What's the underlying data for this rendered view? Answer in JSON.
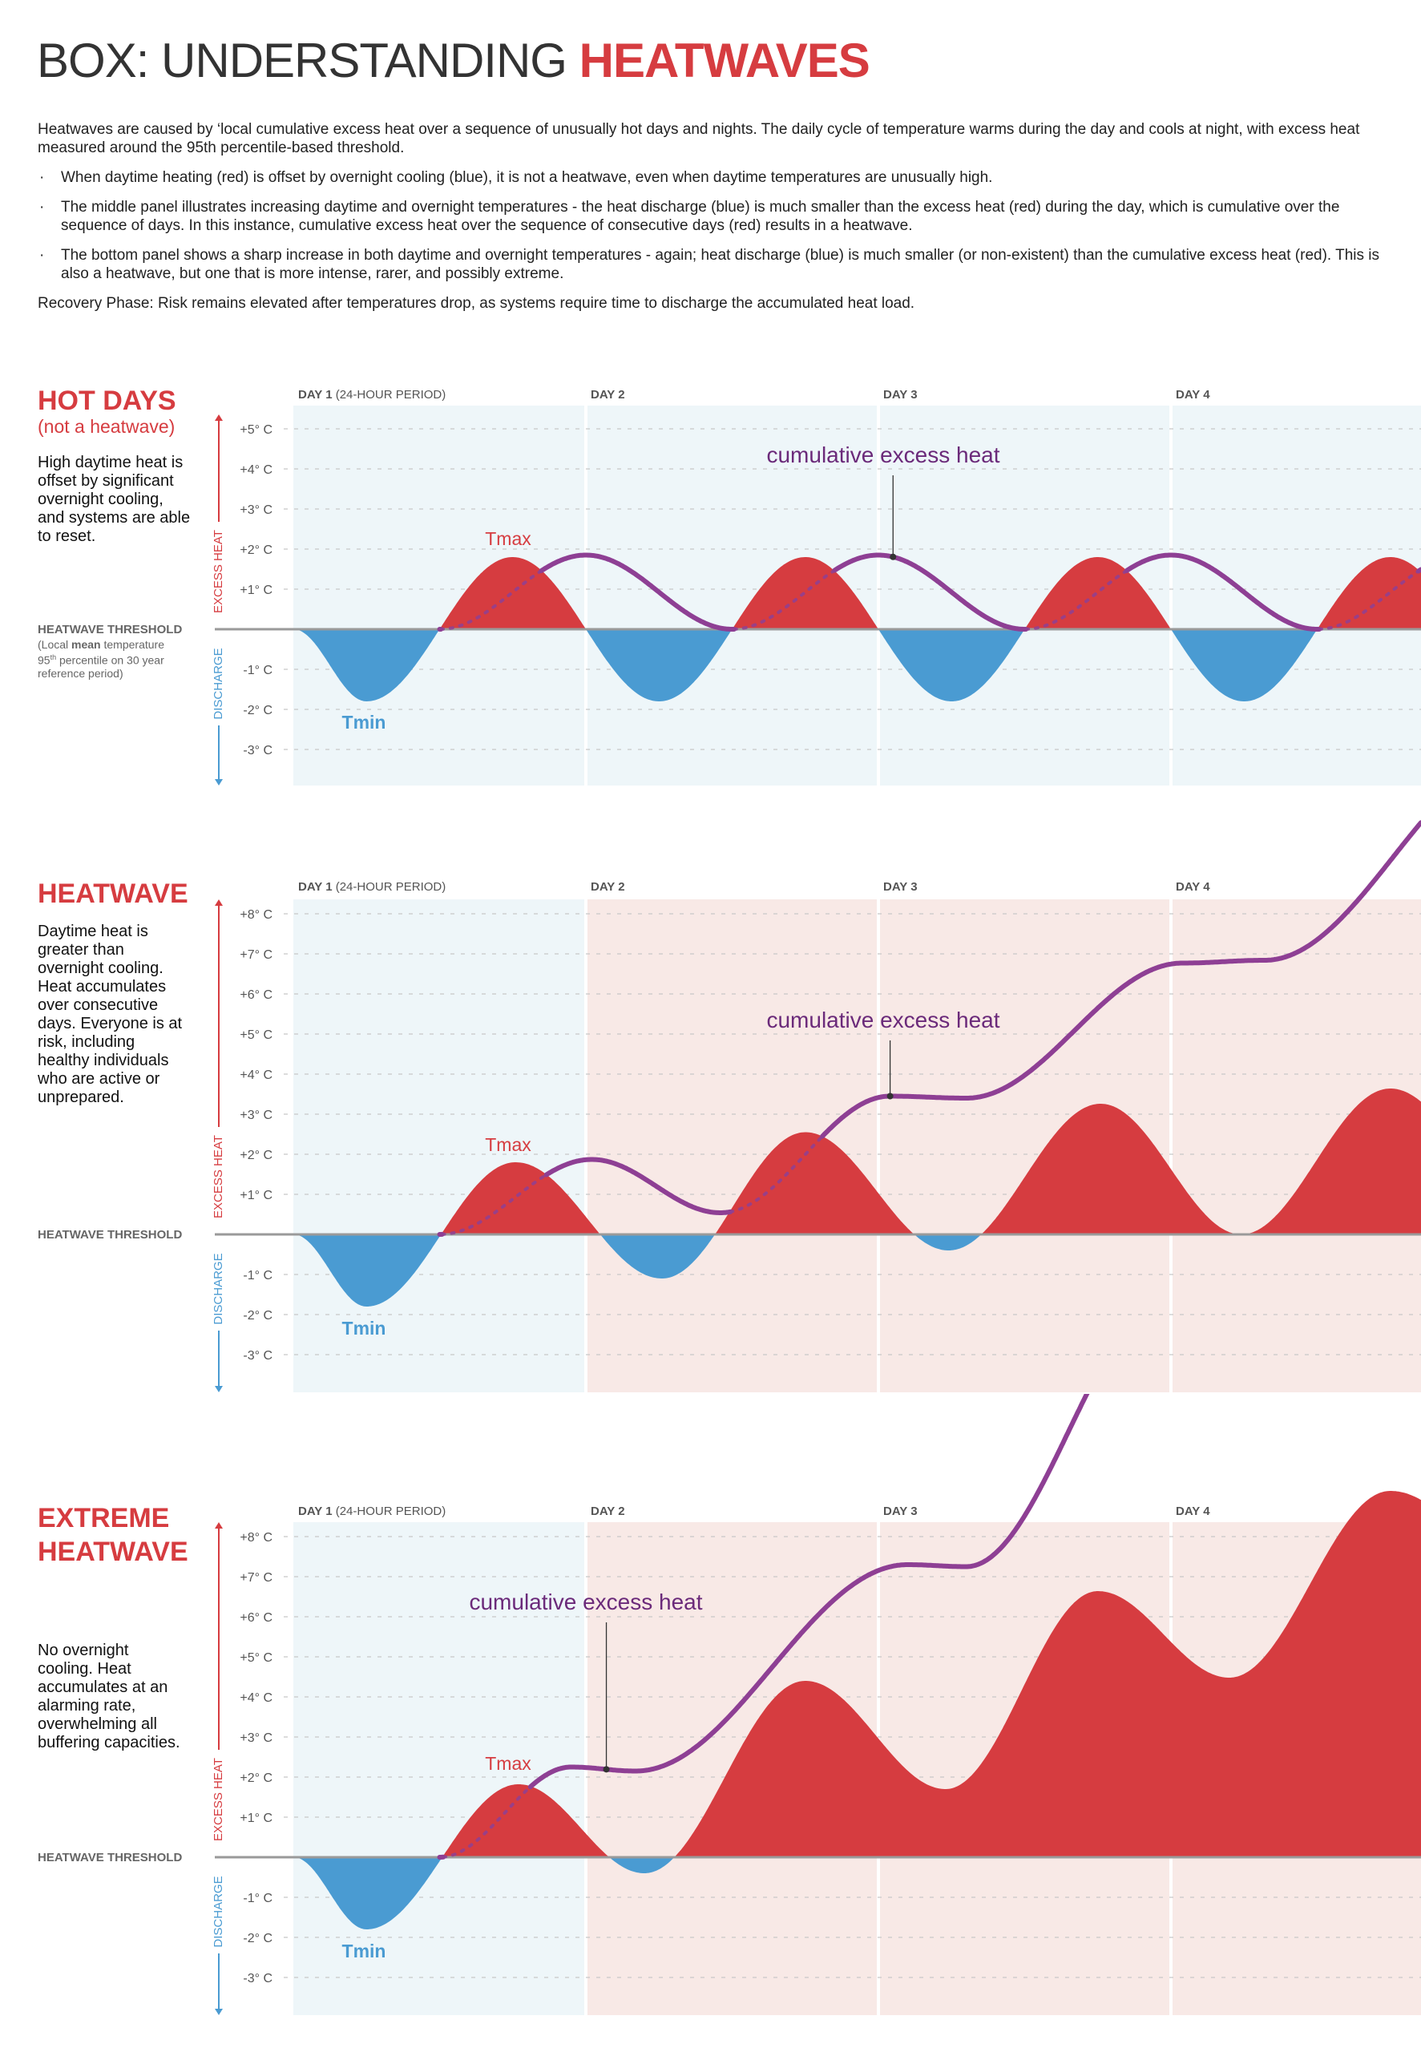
{
  "header": {
    "title_plain": "BOX: UNDERSTANDING ",
    "title_accent": "HEATWAVES"
  },
  "intro": {
    "paragraph": "Heatwaves are caused by ‘local cumulative excess heat over a sequence of unusually hot days and nights. The daily cycle of temperature warms during the day and cools at night, with excess heat measured around the 95th percentile-based threshold.",
    "bullets": [
      "When daytime heating (red) is offset by overnight cooling (blue), it is not a heatwave, even when daytime temperatures are unusually high.",
      "The middle panel illustrates increasing daytime and overnight temperatures - the heat discharge (blue) is much smaller than the excess heat (red) during the day, which is cumulative over the sequence of days. In this instance, cumulative excess heat over the sequence of consecutive days (red) results in a heatwave.",
      "The bottom panel shows a sharp increase in both daytime and overnight temperatures - again; heat discharge (blue) is much smaller (or non-existent) than the cumulative excess heat (red). This is also a heatwave, but one that is more intense, rarer, and possibly extreme."
    ],
    "recovery": "Recovery Phase: Risk remains elevated after temperatures drop, as systems require time to discharge the accumulated heat load."
  },
  "colors": {
    "excess": "#d63c40",
    "discharge": "#4a9bd2",
    "cumulative": "#8e3f94",
    "annotation": "#6b2a7a",
    "normal_day_bg": "#eef6f9",
    "heatwave_day_bg": "#f8e9e6",
    "threshold": "#9a9a9a"
  },
  "panels": [
    {
      "title_lines": [
        "HOT DAYS"
      ],
      "subtitle": "(not a heatwave)",
      "description_lines": [
        "High daytime heat is",
        "offset by significant",
        "overnight cooling,",
        "and systems are able",
        "to reset."
      ],
      "threshold_label": "HEATWAVE THRESHOLD",
      "threshold_note": {
        "p1": "(Local ",
        "bold": "mean",
        "p2": " temperature",
        "line2a": "95",
        "sup": "th",
        "line2b": " percentile on 30 year",
        "line3": "reference period)"
      }
    },
    {
      "title_lines": [
        "HEATWAVE"
      ],
      "description_lines": [
        "Daytime heat is",
        "greater than",
        "overnight cooling.",
        "Heat accumulates",
        "over consecutive",
        "days. Everyone is at",
        "risk, including",
        "healthy individuals",
        "who are active or",
        "unprepared."
      ],
      "threshold_label": "HEATWAVE THRESHOLD"
    },
    {
      "title_lines": [
        "EXTREME",
        "HEATWAVE"
      ],
      "description_lines": [
        "No overnight",
        "cooling. Heat",
        "accumulates at an",
        "alarming rate,",
        "overwhelming all",
        "buffering capacities."
      ],
      "threshold_label": "HEATWAVE THRESHOLD"
    }
  ],
  "chart_data": [
    {
      "type": "area",
      "xunit": "days",
      "day_labels": [
        {
          "bold": "DAY 1",
          "rest": " (24-HOUR PERIOD)"
        },
        {
          "bold": "DAY 2",
          "rest": ""
        },
        {
          "bold": "DAY 3",
          "rest": ""
        },
        {
          "bold": "DAY 4",
          "rest": ""
        }
      ],
      "day_backgrounds": [
        "normal",
        "normal",
        "normal",
        "normal"
      ],
      "y_ticks": [
        5,
        4,
        3,
        2,
        1,
        -1,
        -2,
        -3
      ],
      "y_tick_labels": [
        "+5° C",
        "+4° C",
        "+3° C",
        "+2° C",
        "+1° C",
        "-1° C",
        "-2° C",
        "-3° C"
      ],
      "axis_up_label": "EXCESS HEAT",
      "axis_down_label": "DISCHARGE",
      "tmax_label": "Tmax",
      "tmin_label": "Tmin",
      "annotation": "cumulative excess heat",
      "temperature_extrema": [
        [
          0,
          0
        ],
        [
          0.25,
          -1.8
        ],
        [
          0.75,
          1.8
        ],
        [
          1.25,
          -1.8
        ],
        [
          1.75,
          1.8
        ],
        [
          2.25,
          -1.8
        ],
        [
          2.75,
          1.8
        ],
        [
          3.25,
          -1.8
        ],
        [
          3.75,
          1.8
        ],
        [
          4.25,
          -1.8
        ]
      ],
      "cumulative_excess": [
        [
          0.5,
          0
        ],
        [
          1.0,
          1.85
        ],
        [
          1.5,
          0
        ],
        [
          2.0,
          1.85
        ],
        [
          2.5,
          0
        ],
        [
          3.0,
          1.85
        ],
        [
          3.5,
          0
        ],
        [
          4.0,
          1.85
        ]
      ]
    },
    {
      "type": "area",
      "xunit": "days",
      "day_labels": [
        {
          "bold": "DAY 1",
          "rest": " (24-HOUR PERIOD)"
        },
        {
          "bold": "DAY 2",
          "rest": ""
        },
        {
          "bold": "DAY 3",
          "rest": ""
        },
        {
          "bold": "DAY 4",
          "rest": ""
        }
      ],
      "day_backgrounds": [
        "normal",
        "heatwave",
        "heatwave",
        "heatwave"
      ],
      "y_ticks": [
        8,
        7,
        6,
        5,
        4,
        3,
        2,
        1,
        -1,
        -2,
        -3
      ],
      "y_tick_labels": [
        "+8° C",
        "+7° C",
        "+6° C",
        "+5° C",
        "+4° C",
        "+3° C",
        "+2° C",
        "+1° C",
        "-1° C",
        "-2° C",
        "-3° C"
      ],
      "axis_up_label": "EXCESS HEAT",
      "axis_down_label": "DISCHARGE",
      "tmax_label": "Tmax",
      "tmin_label": "Tmin",
      "annotation": "cumulative excess heat",
      "temperature_extrema": [
        [
          0,
          0
        ],
        [
          0.25,
          -1.8
        ],
        [
          0.76,
          1.8
        ],
        [
          1.26,
          -1.1
        ],
        [
          1.75,
          2.55
        ],
        [
          2.24,
          -0.4
        ],
        [
          2.76,
          3.26
        ],
        [
          3.24,
          0
        ],
        [
          3.75,
          3.64
        ],
        [
          4.25,
          0.5
        ]
      ],
      "cumulative_excess": [
        [
          0.5,
          0
        ],
        [
          1.02,
          1.87
        ],
        [
          1.46,
          0.54
        ],
        [
          2.04,
          3.45
        ],
        [
          2.3,
          3.4
        ],
        [
          3.04,
          6.77
        ],
        [
          3.32,
          6.84
        ],
        [
          4.2,
          12
        ]
      ]
    },
    {
      "type": "area",
      "xunit": "days",
      "day_labels": [
        {
          "bold": "DAY 1",
          "rest": " (24-HOUR PERIOD)"
        },
        {
          "bold": "DAY 2",
          "rest": ""
        },
        {
          "bold": "DAY 3",
          "rest": ""
        },
        {
          "bold": "DAY 4",
          "rest": ""
        }
      ],
      "day_backgrounds": [
        "normal",
        "heatwave",
        "heatwave",
        "heatwave"
      ],
      "y_ticks": [
        8,
        7,
        6,
        5,
        4,
        3,
        2,
        1,
        -1,
        -2,
        -3
      ],
      "y_tick_labels": [
        "+8° C",
        "+7° C",
        "+6° C",
        "+5° C",
        "+4° C",
        "+3° C",
        "+2° C",
        "+1° C",
        "-1° C",
        "-2° C",
        "-3° C"
      ],
      "axis_up_label": "EXCESS HEAT",
      "axis_down_label": "DISCHARGE",
      "tmax_label": "Tmax",
      "tmin_label": "Tmin",
      "annotation": "cumulative excess heat",
      "temperature_extrema": [
        [
          0,
          0
        ],
        [
          0.25,
          -1.8
        ],
        [
          0.77,
          1.82
        ],
        [
          1.2,
          -0.4
        ],
        [
          1.75,
          4.4
        ],
        [
          2.23,
          1.7
        ],
        [
          2.75,
          6.64
        ],
        [
          3.2,
          4.48
        ],
        [
          3.75,
          9.14
        ],
        [
          4.25,
          7
        ]
      ],
      "cumulative_excess": [
        [
          0.5,
          0
        ],
        [
          0.95,
          2.25
        ],
        [
          1.17,
          2.15
        ],
        [
          2.1,
          7.3
        ],
        [
          2.3,
          7.25
        ],
        [
          3.0,
          14
        ]
      ]
    }
  ]
}
